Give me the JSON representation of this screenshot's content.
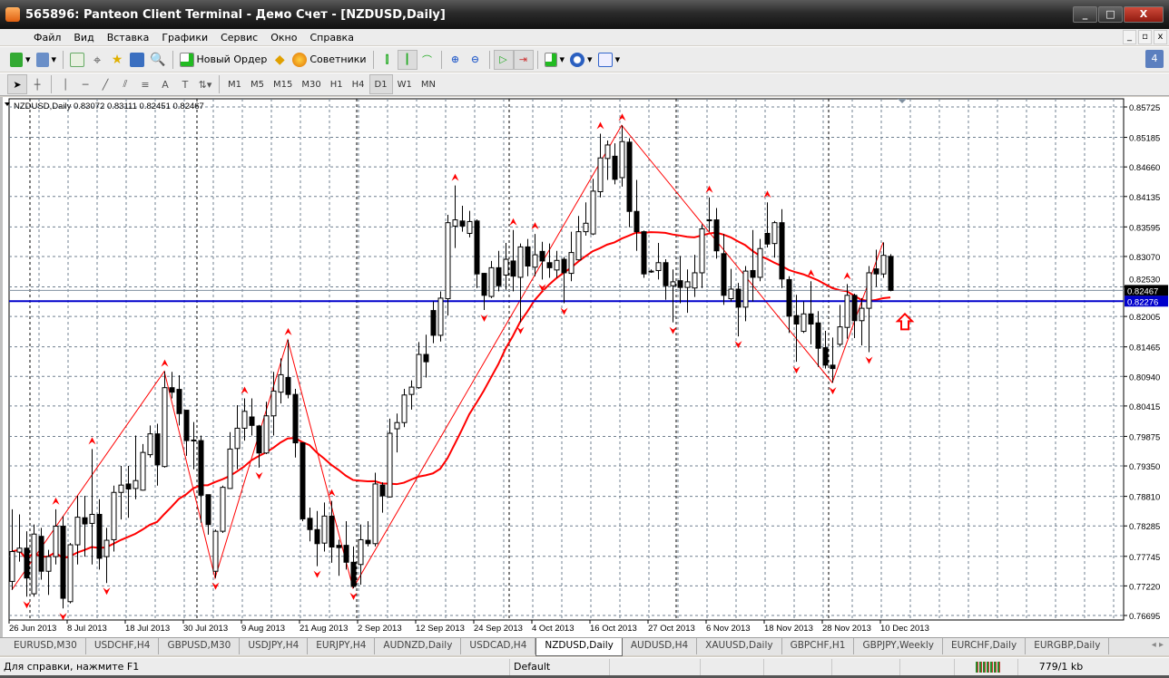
{
  "window": {
    "title": "565896: Panteon Client Terminal - Демо Счет - [NZDUSD,Daily]",
    "min": "_",
    "max": "□",
    "close": "X"
  },
  "menu": {
    "items": [
      "Файл",
      "Вид",
      "Вставка",
      "Графики",
      "Сервис",
      "Окно",
      "Справка"
    ],
    "mdi": [
      "_",
      "▫",
      "x"
    ]
  },
  "toolbar": {
    "new_order": "Новый Ордер",
    "experts": "Советники",
    "notifications": "4"
  },
  "timeframes": {
    "items": [
      "M1",
      "M5",
      "M15",
      "M30",
      "H1",
      "H4",
      "D1",
      "W1",
      "MN"
    ],
    "active": "D1"
  },
  "chart": {
    "info": "NZDUSD,Daily  0.83072 0.83111 0.82451 0.82467",
    "bid_label": "0.82467",
    "hline_label": "0.82276",
    "colors": {
      "bull": "#ffffff",
      "bear": "#000000",
      "ma": "#ff0000",
      "zigzag": "#ff0000",
      "hline": "#0000cc",
      "grid": "#708090"
    }
  },
  "chart_data": {
    "type": "candlestick",
    "symbol": "NZDUSD",
    "timeframe": "Daily",
    "ylim": [
      0.76695,
      0.85725
    ],
    "yticks": [
      "0.85725",
      "0.85185",
      "0.84660",
      "0.84135",
      "0.83595",
      "0.83070",
      "0.82530",
      "0.82005",
      "0.81465",
      "0.80940",
      "0.80415",
      "0.79875",
      "0.79350",
      "0.78810",
      "0.78285",
      "0.77745",
      "0.77220",
      "0.76695"
    ],
    "xticks": [
      "26 Jun 2013",
      "8 Jul 2013",
      "18 Jul 2013",
      "30 Jul 2013",
      "9 Aug 2013",
      "21 Aug 2013",
      "2 Sep 2013",
      "12 Sep 2013",
      "24 Sep 2013",
      "4 Oct 2013",
      "16 Oct 2013",
      "27 Oct 2013",
      "6 Nov 2013",
      "18 Nov 2013",
      "28 Nov 2013",
      "10 Dec 2013"
    ],
    "grid": true,
    "horizontal_line": 0.82276,
    "bid": 0.82467,
    "ohlc": [
      [
        0.773,
        0.7858,
        0.7715,
        0.7783
      ],
      [
        0.7782,
        0.7849,
        0.7765,
        0.7789
      ],
      [
        0.7789,
        0.7819,
        0.7703,
        0.7736
      ],
      [
        0.7708,
        0.7831,
        0.7703,
        0.7814
      ],
      [
        0.781,
        0.7825,
        0.7733,
        0.7748
      ],
      [
        0.7748,
        0.7786,
        0.7706,
        0.7774
      ],
      [
        0.7774,
        0.7858,
        0.776,
        0.7828
      ],
      [
        0.7828,
        0.7846,
        0.7682,
        0.77
      ],
      [
        0.7694,
        0.7798,
        0.7691,
        0.7795
      ],
      [
        0.7795,
        0.7882,
        0.776,
        0.7844
      ],
      [
        0.7843,
        0.7882,
        0.7774,
        0.7832
      ],
      [
        0.7833,
        0.7965,
        0.776,
        0.7849
      ],
      [
        0.7849,
        0.7876,
        0.7751,
        0.7771
      ],
      [
        0.7774,
        0.7825,
        0.7727,
        0.7803
      ],
      [
        0.7804,
        0.79,
        0.7783,
        0.7888
      ],
      [
        0.7888,
        0.7935,
        0.784,
        0.7901
      ],
      [
        0.7903,
        0.7935,
        0.7843,
        0.7894
      ],
      [
        0.7895,
        0.7989,
        0.7876,
        0.7909
      ],
      [
        0.7892,
        0.7974,
        0.7891,
        0.7959
      ],
      [
        0.7955,
        0.8007,
        0.795,
        0.7992
      ],
      [
        0.7992,
        0.801,
        0.79,
        0.7937
      ],
      [
        0.7934,
        0.8103,
        0.7932,
        0.8074
      ],
      [
        0.8074,
        0.8102,
        0.8055,
        0.8066
      ],
      [
        0.8071,
        0.8096,
        0.8007,
        0.8028
      ],
      [
        0.8034,
        0.8034,
        0.7953,
        0.798
      ],
      [
        0.7981,
        0.8013,
        0.7929,
        0.798
      ],
      [
        0.798,
        0.7989,
        0.7834,
        0.7883
      ],
      [
        0.7884,
        0.7884,
        0.7813,
        0.7831
      ],
      [
        0.7748,
        0.7822,
        0.7736,
        0.7819
      ],
      [
        0.7819,
        0.79,
        0.7816,
        0.7897
      ],
      [
        0.7895,
        0.7995,
        0.7894,
        0.7965
      ],
      [
        0.7966,
        0.8043,
        0.7929,
        0.8002
      ],
      [
        0.8002,
        0.8055,
        0.798,
        0.8032
      ],
      [
        0.8022,
        0.8055,
        0.7989,
        0.8007
      ],
      [
        0.8006,
        0.8008,
        0.7932,
        0.7958
      ],
      [
        0.7958,
        0.8049,
        0.7956,
        0.8024
      ],
      [
        0.8024,
        0.8102,
        0.7989,
        0.8068
      ],
      [
        0.8066,
        0.8126,
        0.8046,
        0.8097
      ],
      [
        0.8092,
        0.8159,
        0.8055,
        0.8062
      ],
      [
        0.8062,
        0.8072,
        0.795,
        0.7976
      ],
      [
        0.7976,
        0.7977,
        0.7837,
        0.7841
      ],
      [
        0.7842,
        0.7861,
        0.7801,
        0.7822
      ],
      [
        0.7822,
        0.7855,
        0.7757,
        0.7797
      ],
      [
        0.7798,
        0.787,
        0.7783,
        0.7846
      ],
      [
        0.7846,
        0.7873,
        0.7763,
        0.7791
      ],
      [
        0.7794,
        0.7804,
        0.774,
        0.779
      ],
      [
        0.7794,
        0.7837,
        0.7751,
        0.7764
      ],
      [
        0.7764,
        0.7792,
        0.7718,
        0.7721
      ],
      [
        0.776,
        0.7831,
        0.7724,
        0.7804
      ],
      [
        0.7803,
        0.7837,
        0.7792,
        0.7797
      ],
      [
        0.7797,
        0.7923,
        0.7792,
        0.7903
      ],
      [
        0.7901,
        0.7906,
        0.7852,
        0.7882
      ],
      [
        0.788,
        0.8019,
        0.7879,
        0.7993
      ],
      [
        0.8001,
        0.8028,
        0.7959,
        0.8012
      ],
      [
        0.8012,
        0.8072,
        0.8004,
        0.8061
      ],
      [
        0.8062,
        0.8087,
        0.8035,
        0.8075
      ],
      [
        0.8074,
        0.8155,
        0.8072,
        0.8133
      ],
      [
        0.8133,
        0.8168,
        0.8092,
        0.812
      ],
      [
        0.8211,
        0.8227,
        0.8153,
        0.8167
      ],
      [
        0.8167,
        0.8245,
        0.8156,
        0.8233
      ],
      [
        0.8232,
        0.8381,
        0.8202,
        0.8367
      ],
      [
        0.8361,
        0.8433,
        0.8322,
        0.8372
      ],
      [
        0.837,
        0.8397,
        0.8351,
        0.8361
      ],
      [
        0.8348,
        0.8388,
        0.8341,
        0.8369
      ],
      [
        0.837,
        0.8373,
        0.8251,
        0.8276
      ],
      [
        0.8277,
        0.8278,
        0.8212,
        0.8238
      ],
      [
        0.8236,
        0.8299,
        0.8233,
        0.8287
      ],
      [
        0.8287,
        0.8317,
        0.8245,
        0.8255
      ],
      [
        0.8274,
        0.8331,
        0.8248,
        0.8302
      ],
      [
        0.8299,
        0.8354,
        0.8245,
        0.8272
      ],
      [
        0.827,
        0.833,
        0.819,
        0.8324
      ],
      [
        0.8324,
        0.8338,
        0.8272,
        0.829
      ],
      [
        0.8288,
        0.8347,
        0.8272,
        0.831
      ],
      [
        0.8316,
        0.8333,
        0.8266,
        0.8299
      ],
      [
        0.8296,
        0.833,
        0.8269,
        0.8287
      ],
      [
        0.8283,
        0.8317,
        0.8269,
        0.83
      ],
      [
        0.8302,
        0.8306,
        0.8224,
        0.8278
      ],
      [
        0.8277,
        0.8351,
        0.8263,
        0.8314
      ],
      [
        0.8301,
        0.8379,
        0.83,
        0.8351
      ],
      [
        0.8351,
        0.8403,
        0.8344,
        0.8366
      ],
      [
        0.8347,
        0.8445,
        0.8345,
        0.8423
      ],
      [
        0.8422,
        0.8525,
        0.8412,
        0.8482
      ],
      [
        0.8481,
        0.8513,
        0.8443,
        0.8505
      ],
      [
        0.8485,
        0.8508,
        0.8435,
        0.8444
      ],
      [
        0.8447,
        0.854,
        0.8431,
        0.8511
      ],
      [
        0.851,
        0.8517,
        0.8359,
        0.8387
      ],
      [
        0.8387,
        0.8443,
        0.8317,
        0.8351
      ],
      [
        0.8351,
        0.8353,
        0.8269,
        0.8276
      ],
      [
        0.8281,
        0.8284,
        0.8278,
        0.828
      ],
      [
        0.8282,
        0.8331,
        0.8266,
        0.8296
      ],
      [
        0.8296,
        0.8302,
        0.823,
        0.8255
      ],
      [
        0.8255,
        0.8284,
        0.819,
        0.8262
      ],
      [
        0.8264,
        0.8308,
        0.8224,
        0.8252
      ],
      [
        0.8252,
        0.8284,
        0.8207,
        0.8262
      ],
      [
        0.8251,
        0.831,
        0.8235,
        0.8278
      ],
      [
        0.8278,
        0.8364,
        0.8251,
        0.8356
      ],
      [
        0.8372,
        0.8412,
        0.8351,
        0.8372
      ],
      [
        0.8372,
        0.8393,
        0.8303,
        0.8317
      ],
      [
        0.8312,
        0.8347,
        0.8221,
        0.8238
      ],
      [
        0.8232,
        0.8285,
        0.8227,
        0.8249
      ],
      [
        0.8249,
        0.826,
        0.8165,
        0.8217
      ],
      [
        0.8217,
        0.829,
        0.8192,
        0.8281
      ],
      [
        0.8282,
        0.8354,
        0.8227,
        0.827
      ],
      [
        0.827,
        0.8338,
        0.8263,
        0.8321
      ],
      [
        0.8348,
        0.8403,
        0.8323,
        0.8329
      ],
      [
        0.833,
        0.837,
        0.8305,
        0.8367
      ],
      [
        0.8367,
        0.8391,
        0.8251,
        0.8267
      ],
      [
        0.8266,
        0.8272,
        0.8171,
        0.8201
      ],
      [
        0.8202,
        0.8239,
        0.812,
        0.8187
      ],
      [
        0.8174,
        0.8227,
        0.8171,
        0.8205
      ],
      [
        0.8205,
        0.8263,
        0.8151,
        0.8187
      ],
      [
        0.8189,
        0.821,
        0.8111,
        0.8144
      ],
      [
        0.8145,
        0.8175,
        0.8108,
        0.8114
      ],
      [
        0.8114,
        0.8163,
        0.8083,
        0.8108
      ],
      [
        0.8151,
        0.8221,
        0.8147,
        0.8182
      ],
      [
        0.8181,
        0.8258,
        0.8161,
        0.8238
      ],
      [
        0.8238,
        0.8241,
        0.8162,
        0.8193
      ],
      [
        0.8193,
        0.8233,
        0.8149,
        0.8215
      ],
      [
        0.8215,
        0.829,
        0.8137,
        0.8278
      ],
      [
        0.8285,
        0.8319,
        0.8253,
        0.8276
      ],
      [
        0.8276,
        0.8332,
        0.8269,
        0.8309
      ],
      [
        0.83072,
        0.83111,
        0.82451,
        0.82467
      ]
    ],
    "zigzag": [
      [
        0,
        0.7715
      ],
      [
        21,
        0.8103
      ],
      [
        28,
        0.7736
      ],
      [
        38,
        0.8159
      ],
      [
        47,
        0.7718
      ],
      [
        84,
        0.854
      ],
      [
        113,
        0.8083
      ],
      [
        120,
        0.8332
      ]
    ]
  },
  "tabs": {
    "items": [
      "EURUSD,M30",
      "USDCHF,H4",
      "GBPUSD,M30",
      "USDJPY,H4",
      "EURJPY,H4",
      "AUDNZD,Daily",
      "USDCAD,H4",
      "NZDUSD,Daily",
      "AUDUSD,H4",
      "XAUUSD,Daily",
      "GBPCHF,H1",
      "GBPJPY,Weekly",
      "EURCHF,Daily",
      "EURGBP,Daily"
    ],
    "active": "NZDUSD,Daily",
    "nav": "◂ ▸"
  },
  "status": {
    "help": "Для справки, нажмите F1",
    "profile": "Default",
    "traffic": "779/1 kb"
  }
}
